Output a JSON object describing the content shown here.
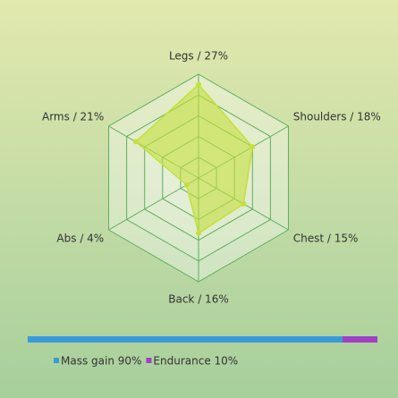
{
  "chart_data": [
    {
      "type": "radar",
      "categories": [
        "Legs / 27%",
        "Shoulders / 18%",
        "Chest / 15%",
        "Back / 16%",
        "Abs / 4%",
        "Arms / 21%"
      ],
      "values": [
        27,
        18,
        15,
        16,
        4,
        21
      ],
      "rlim": [
        0,
        30
      ],
      "color": "#c4e03c"
    },
    {
      "type": "stacked-bar",
      "xlim": [
        0,
        100
      ],
      "series": [
        {
          "name": "Mass gain 90%",
          "color": "#3a9ad8",
          "values": [
            90
          ]
        },
        {
          "name": "Endurance 10%",
          "color": "#a040c8",
          "values": [
            10
          ]
        }
      ]
    }
  ]
}
